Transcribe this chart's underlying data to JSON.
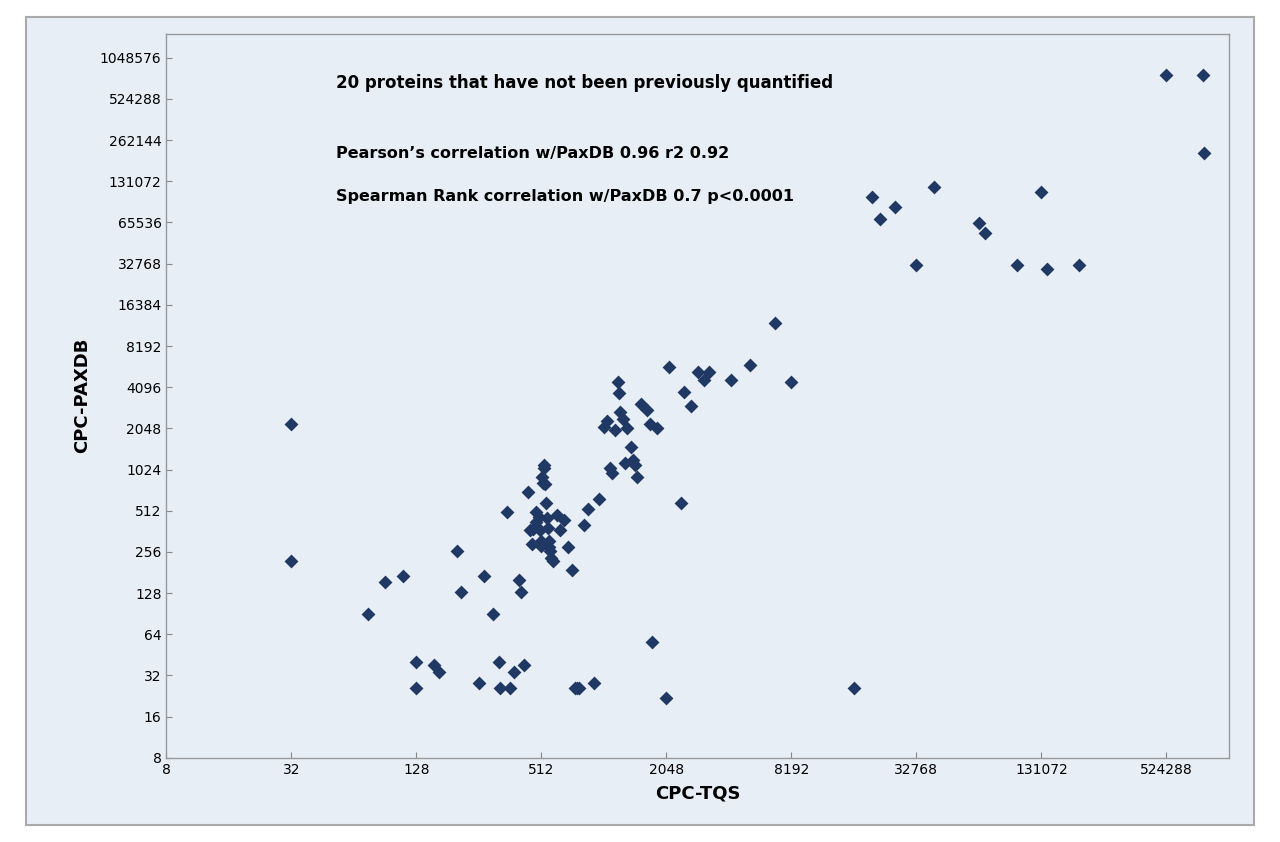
{
  "title_line1": "20 proteins that have not been previously quantified",
  "title_line2": "Pearson’s correlation w/PaxDB 0.96 r2 0.92",
  "title_line3": "Spearman Rank correlation w/PaxDB 0.7 p<0.0001",
  "xlabel": "CPC-TQS",
  "ylabel": "CPC-PAXDB",
  "marker_color": "#1F3864",
  "plot_bg_color": "#EAF0F8",
  "outer_bg_color": "#FFFFFF",
  "frame_color": "#AAAAAA",
  "x_ticks": [
    8,
    32,
    128,
    512,
    2048,
    8192,
    32768,
    131072,
    524288
  ],
  "y_ticks": [
    8,
    16,
    32,
    64,
    128,
    256,
    512,
    1024,
    2048,
    4096,
    8192,
    16384,
    32768,
    65536,
    131072,
    262144,
    524288,
    1048576
  ],
  "points": [
    [
      32,
      2200
    ],
    [
      32,
      220
    ],
    [
      75,
      90
    ],
    [
      90,
      155
    ],
    [
      110,
      170
    ],
    [
      128,
      40
    ],
    [
      128,
      26
    ],
    [
      155,
      38
    ],
    [
      165,
      34
    ],
    [
      200,
      260
    ],
    [
      210,
      130
    ],
    [
      256,
      28
    ],
    [
      270,
      170
    ],
    [
      300,
      90
    ],
    [
      320,
      40
    ],
    [
      325,
      26
    ],
    [
      350,
      500
    ],
    [
      360,
      26
    ],
    [
      380,
      34
    ],
    [
      400,
      160
    ],
    [
      410,
      130
    ],
    [
      420,
      38
    ],
    [
      440,
      700
    ],
    [
      450,
      370
    ],
    [
      460,
      290
    ],
    [
      465,
      375
    ],
    [
      480,
      500
    ],
    [
      485,
      420
    ],
    [
      500,
      460
    ],
    [
      505,
      370
    ],
    [
      510,
      310
    ],
    [
      512,
      285
    ],
    [
      515,
      900
    ],
    [
      520,
      820
    ],
    [
      525,
      1050
    ],
    [
      530,
      1100
    ],
    [
      535,
      800
    ],
    [
      540,
      580
    ],
    [
      545,
      450
    ],
    [
      550,
      380
    ],
    [
      555,
      310
    ],
    [
      560,
      280
    ],
    [
      565,
      260
    ],
    [
      570,
      230
    ],
    [
      580,
      220
    ],
    [
      610,
      480
    ],
    [
      630,
      370
    ],
    [
      660,
      440
    ],
    [
      690,
      280
    ],
    [
      720,
      190
    ],
    [
      740,
      26
    ],
    [
      760,
      26
    ],
    [
      780,
      26
    ],
    [
      820,
      400
    ],
    [
      860,
      530
    ],
    [
      920,
      28
    ],
    [
      970,
      620
    ],
    [
      1024,
      2100
    ],
    [
      1060,
      2300
    ],
    [
      1100,
      1050
    ],
    [
      1120,
      960
    ],
    [
      1160,
      2000
    ],
    [
      1200,
      4500
    ],
    [
      1210,
      3700
    ],
    [
      1220,
      2700
    ],
    [
      1260,
      2400
    ],
    [
      1300,
      1150
    ],
    [
      1320,
      2050
    ],
    [
      1380,
      1500
    ],
    [
      1420,
      1200
    ],
    [
      1450,
      1100
    ],
    [
      1480,
      900
    ],
    [
      1550,
      3100
    ],
    [
      1650,
      2800
    ],
    [
      1700,
      2200
    ],
    [
      1750,
      56
    ],
    [
      1850,
      2050
    ],
    [
      2048,
      22
    ],
    [
      2100,
      5800
    ],
    [
      2400,
      580
    ],
    [
      2500,
      3800
    ],
    [
      2700,
      3000
    ],
    [
      2900,
      5300
    ],
    [
      3100,
      4600
    ],
    [
      3300,
      5300
    ],
    [
      4200,
      4600
    ],
    [
      5200,
      6000
    ],
    [
      6800,
      12000
    ],
    [
      8192,
      4500
    ],
    [
      16384,
      26
    ],
    [
      20000,
      100000
    ],
    [
      22000,
      70000
    ],
    [
      26000,
      85000
    ],
    [
      32768,
      32000
    ],
    [
      40000,
      120000
    ],
    [
      65536,
      65000
    ],
    [
      70000,
      55000
    ],
    [
      100000,
      32000
    ],
    [
      131072,
      110000
    ],
    [
      140000,
      30000
    ],
    [
      200000,
      32000
    ],
    [
      524288,
      786432
    ],
    [
      786432,
      786432
    ],
    [
      800000,
      210000
    ]
  ]
}
